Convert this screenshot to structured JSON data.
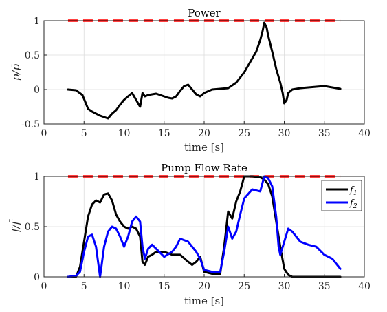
{
  "colors": {
    "limit": "#ff0000",
    "f1": "#000000",
    "f2": "#0000ff",
    "grid": "#dcdcdc",
    "axis": "#262626"
  },
  "chart_data": [
    {
      "type": "line",
      "title": "Power",
      "xlabel": "time [s]",
      "ylabel": "p/p̄",
      "xlim": [
        0,
        40
      ],
      "ylim": [
        -0.5,
        1
      ],
      "xticks": [
        "0",
        "5",
        "10",
        "15",
        "20",
        "25",
        "30",
        "35",
        "40"
      ],
      "yticks": [
        "-0.5",
        "0",
        "0.5",
        "1"
      ],
      "grid": true,
      "legend": false,
      "limit_line": {
        "y": 1,
        "style": "dashed",
        "color": "#ff0000"
      },
      "series": [
        {
          "color": "#000000",
          "x": [
            3.0,
            4.0,
            4.8,
            5.3,
            5.5,
            6.0,
            6.5,
            7.0,
            7.5,
            8.0,
            8.5,
            9.0,
            9.5,
            10.0,
            10.5,
            11.0,
            11.5,
            12.0,
            12.3,
            12.6,
            13.0,
            13.5,
            14.0,
            14.5,
            15.0,
            15.5,
            16.0,
            16.5,
            17.0,
            17.5,
            18.0,
            18.5,
            19.0,
            19.5,
            20.0,
            21.0,
            22.0,
            23.0,
            24.0,
            25.0,
            25.5,
            26.0,
            26.5,
            27.0,
            27.3,
            27.5,
            27.8,
            28.0,
            28.5,
            29.0,
            29.5,
            29.8,
            30.0,
            30.3,
            30.5,
            31.0,
            32.0,
            33.0,
            34.0,
            35.0,
            36.0,
            37.0
          ],
          "values": [
            0.0,
            -0.01,
            -0.08,
            -0.22,
            -0.28,
            -0.32,
            -0.35,
            -0.38,
            -0.4,
            -0.42,
            -0.35,
            -0.3,
            -0.22,
            -0.15,
            -0.1,
            -0.05,
            -0.15,
            -0.25,
            -0.05,
            -0.1,
            -0.08,
            -0.07,
            -0.06,
            -0.08,
            -0.1,
            -0.12,
            -0.13,
            -0.1,
            -0.02,
            0.05,
            0.07,
            0.0,
            -0.07,
            -0.1,
            -0.05,
            0.0,
            0.01,
            0.02,
            0.1,
            0.25,
            0.35,
            0.45,
            0.55,
            0.72,
            0.85,
            0.97,
            0.9,
            0.78,
            0.55,
            0.3,
            0.1,
            -0.05,
            -0.2,
            -0.15,
            -0.05,
            0.0,
            0.02,
            0.03,
            0.04,
            0.05,
            0.03,
            0.01
          ]
        }
      ]
    },
    {
      "type": "line",
      "title": "Pump Flow Rate",
      "xlabel": "time [s]",
      "ylabel": "f/f̄",
      "xlim": [
        0,
        40
      ],
      "ylim": [
        0,
        1
      ],
      "xticks": [
        "0",
        "5",
        "10",
        "15",
        "20",
        "25",
        "30",
        "35",
        "40"
      ],
      "yticks": [
        "0",
        "0.5",
        "1"
      ],
      "grid": true,
      "legend": "top-right",
      "limit_line": {
        "y": 1,
        "style": "dashed",
        "color": "#ff0000"
      },
      "series": [
        {
          "name": "f",
          "name_sub": "1",
          "color": "#000000",
          "x": [
            3.0,
            4.0,
            4.5,
            5.0,
            5.5,
            6.0,
            6.5,
            7.0,
            7.5,
            8.0,
            8.5,
            9.0,
            9.5,
            10.0,
            10.5,
            11.0,
            11.5,
            12.0,
            12.3,
            12.6,
            13.0,
            13.5,
            14.0,
            15.0,
            16.0,
            17.0,
            18.0,
            18.5,
            19.0,
            19.5,
            20.0,
            21.0,
            22.0,
            22.5,
            23.0,
            23.5,
            24.0,
            24.5,
            25.0,
            26.0,
            27.0,
            27.5,
            28.0,
            28.5,
            29.0,
            29.5,
            30.0,
            30.5,
            31.0,
            32.0,
            33.0,
            34.0,
            35.0,
            36.0,
            37.0
          ],
          "values": [
            0.0,
            0.0,
            0.1,
            0.35,
            0.6,
            0.72,
            0.76,
            0.74,
            0.82,
            0.83,
            0.76,
            0.62,
            0.55,
            0.5,
            0.48,
            0.5,
            0.48,
            0.4,
            0.15,
            0.12,
            0.2,
            0.22,
            0.25,
            0.25,
            0.22,
            0.22,
            0.15,
            0.12,
            0.15,
            0.2,
            0.05,
            0.03,
            0.03,
            0.3,
            0.65,
            0.58,
            0.75,
            0.85,
            1.0,
            1.0,
            0.99,
            0.97,
            0.92,
            0.8,
            0.55,
            0.3,
            0.08,
            0.02,
            0.0,
            0.0,
            0.0,
            0.0,
            0.0,
            0.0,
            0.0
          ]
        },
        {
          "name": "f",
          "name_sub": "2",
          "color": "#0000ff",
          "x": [
            3.0,
            4.0,
            4.5,
            5.0,
            5.5,
            6.0,
            6.5,
            7.0,
            7.5,
            8.0,
            8.5,
            9.0,
            9.5,
            10.0,
            10.5,
            11.0,
            11.5,
            12.0,
            12.3,
            12.6,
            13.0,
            13.5,
            14.0,
            15.0,
            16.0,
            16.5,
            17.0,
            18.0,
            19.0,
            19.5,
            20.0,
            21.0,
            22.0,
            22.5,
            23.0,
            23.5,
            24.0,
            24.5,
            25.0,
            26.0,
            27.0,
            27.5,
            28.0,
            28.5,
            29.0,
            29.3,
            29.5,
            30.0,
            30.5,
            31.0,
            32.0,
            33.0,
            34.0,
            35.0,
            36.0,
            37.0
          ],
          "values": [
            0.0,
            0.01,
            0.05,
            0.25,
            0.4,
            0.42,
            0.3,
            0.0,
            0.3,
            0.45,
            0.5,
            0.48,
            0.4,
            0.3,
            0.4,
            0.55,
            0.6,
            0.55,
            0.3,
            0.18,
            0.28,
            0.32,
            0.28,
            0.2,
            0.25,
            0.3,
            0.38,
            0.35,
            0.25,
            0.18,
            0.07,
            0.05,
            0.05,
            0.25,
            0.5,
            0.38,
            0.45,
            0.62,
            0.78,
            0.87,
            0.85,
            1.0,
            0.98,
            0.9,
            0.6,
            0.3,
            0.22,
            0.35,
            0.48,
            0.45,
            0.35,
            0.32,
            0.3,
            0.22,
            0.18,
            0.08
          ]
        }
      ]
    }
  ]
}
